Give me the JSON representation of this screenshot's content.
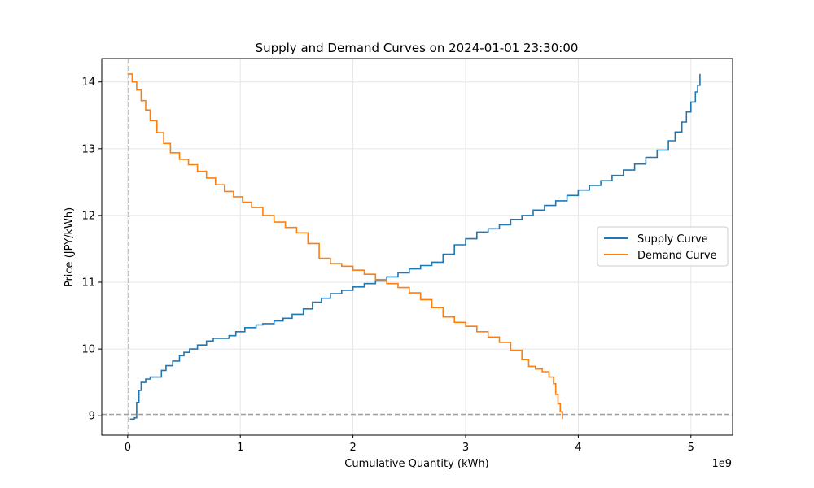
{
  "chart_data": {
    "type": "line",
    "title": "Supply and Demand Curves on 2024-01-01 23:30:00",
    "xlabel": "Cumulative Quantity (kWh)",
    "ylabel": "Price (JPY/kWh)",
    "x_offset_label": "1e9",
    "x_ticks": [
      "0",
      "1",
      "2",
      "3",
      "4",
      "5"
    ],
    "y_ticks": [
      "9",
      "10",
      "11",
      "12",
      "13",
      "14"
    ],
    "xlim": [
      -0.23,
      5.37
    ],
    "ylim": [
      8.71,
      14.35
    ],
    "grid": true,
    "legend_position": "center-right",
    "reference_lines": {
      "vertical_x": 0.01,
      "horizontal_y": 9.02,
      "color": "#a0a0a0",
      "style": "dashed"
    },
    "series": [
      {
        "name": "Supply Curve",
        "color": "#1f77b4",
        "x": [
          0.02,
          0.06,
          0.08,
          0.1,
          0.12,
          0.16,
          0.2,
          0.3,
          0.34,
          0.4,
          0.46,
          0.5,
          0.55,
          0.62,
          0.7,
          0.76,
          0.9,
          0.96,
          1.04,
          1.14,
          1.2,
          1.3,
          1.38,
          1.46,
          1.56,
          1.64,
          1.72,
          1.8,
          1.9,
          2.0,
          2.1,
          2.2,
          2.3,
          2.4,
          2.5,
          2.6,
          2.7,
          2.8,
          2.9,
          3.0,
          3.1,
          3.2,
          3.3,
          3.4,
          3.5,
          3.6,
          3.7,
          3.8,
          3.9,
          4.0,
          4.1,
          4.2,
          4.3,
          4.4,
          4.5,
          4.6,
          4.7,
          4.8,
          4.86,
          4.92,
          4.96,
          5.0,
          5.04,
          5.06,
          5.08
        ],
        "y": [
          8.95,
          8.97,
          9.2,
          9.38,
          9.5,
          9.55,
          9.58,
          9.68,
          9.75,
          9.82,
          9.9,
          9.95,
          10.0,
          10.06,
          10.12,
          10.16,
          10.2,
          10.26,
          10.32,
          10.36,
          10.38,
          10.42,
          10.46,
          10.52,
          10.6,
          10.7,
          10.76,
          10.83,
          10.88,
          10.93,
          10.98,
          11.02,
          11.08,
          11.14,
          11.2,
          11.25,
          11.3,
          11.42,
          11.56,
          11.65,
          11.75,
          11.8,
          11.86,
          11.94,
          12.0,
          12.08,
          12.15,
          12.22,
          12.3,
          12.38,
          12.45,
          12.52,
          12.6,
          12.68,
          12.77,
          12.87,
          12.98,
          13.12,
          13.25,
          13.4,
          13.55,
          13.7,
          13.85,
          13.95,
          14.12
        ]
      },
      {
        "name": "Demand Curve",
        "color": "#ff7f0e",
        "x": [
          0.0,
          0.04,
          0.08,
          0.12,
          0.16,
          0.2,
          0.26,
          0.32,
          0.38,
          0.46,
          0.54,
          0.62,
          0.7,
          0.78,
          0.86,
          0.94,
          1.02,
          1.1,
          1.2,
          1.3,
          1.4,
          1.5,
          1.6,
          1.7,
          1.8,
          1.9,
          2.0,
          2.1,
          2.2,
          2.3,
          2.4,
          2.5,
          2.6,
          2.7,
          2.8,
          2.9,
          3.0,
          3.1,
          3.2,
          3.3,
          3.4,
          3.5,
          3.56,
          3.62,
          3.68,
          3.74,
          3.78,
          3.8,
          3.82,
          3.84,
          3.86
        ],
        "y": [
          14.12,
          14.0,
          13.88,
          13.72,
          13.58,
          13.42,
          13.24,
          13.08,
          12.94,
          12.84,
          12.76,
          12.66,
          12.56,
          12.46,
          12.36,
          12.28,
          12.2,
          12.12,
          12.0,
          11.9,
          11.82,
          11.74,
          11.58,
          11.36,
          11.28,
          11.24,
          11.18,
          11.12,
          11.04,
          10.98,
          10.92,
          10.84,
          10.74,
          10.62,
          10.48,
          10.4,
          10.34,
          10.26,
          10.18,
          10.1,
          9.98,
          9.84,
          9.74,
          9.7,
          9.66,
          9.58,
          9.48,
          9.32,
          9.18,
          9.06,
          8.95
        ]
      }
    ]
  }
}
